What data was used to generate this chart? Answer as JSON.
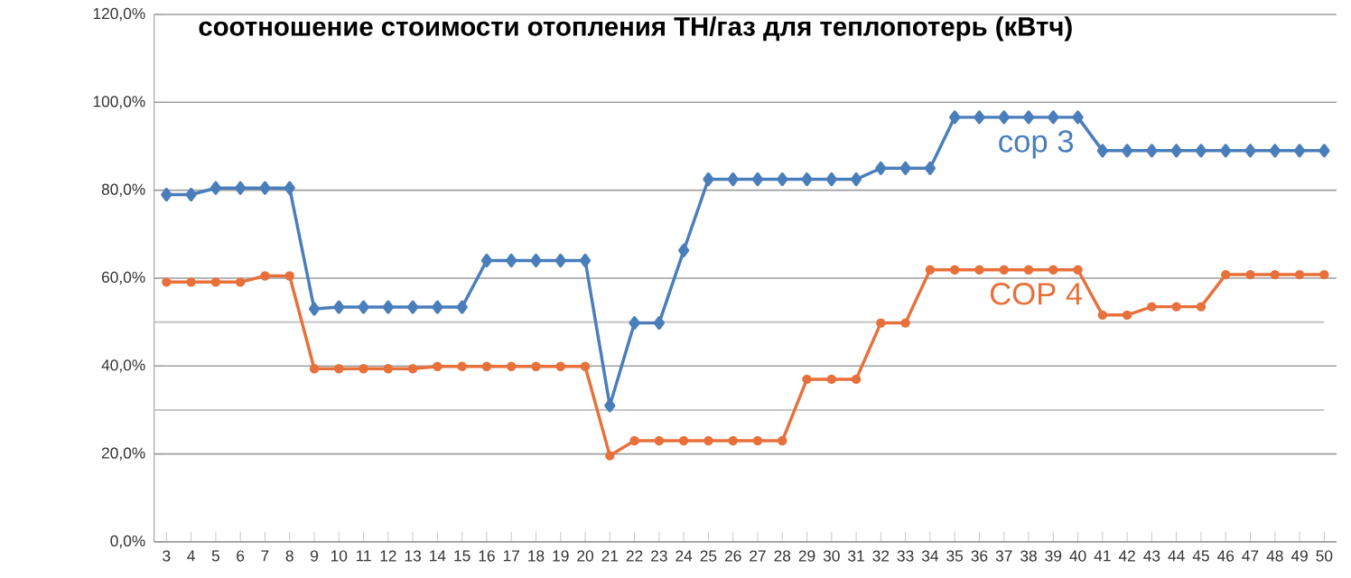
{
  "chart_data": {
    "type": "line",
    "title": "**соотношение стоимости отопления ТН/газ для теплопотерь (кВтч)**",
    "categories": [
      "3",
      "4",
      "5",
      "6",
      "7",
      "8",
      "9",
      "10",
      "11",
      "12",
      "13",
      "14",
      "15",
      "16",
      "17",
      "18",
      "19",
      "20",
      "21",
      "22",
      "23",
      "24",
      "25",
      "26",
      "27",
      "28",
      "29",
      "30",
      "31",
      "32",
      "33",
      "34",
      "35",
      "36",
      "37",
      "38",
      "39",
      "40",
      "41",
      "42",
      "43",
      "44",
      "45",
      "46",
      "47",
      "48",
      "49",
      "50"
    ],
    "series": [
      {
        "name": "cop 3",
        "color": "#4a7ebb",
        "marker": "diamond",
        "values": [
          79,
          79,
          80.5,
          80.5,
          80.5,
          80.5,
          53,
          53.4,
          53.4,
          53.4,
          53.4,
          53.4,
          53.4,
          64,
          64,
          64,
          64,
          64,
          31,
          49.8,
          49.8,
          66.3,
          82.5,
          82.5,
          82.5,
          82.5,
          82.5,
          82.5,
          82.5,
          85,
          85,
          85,
          96.6,
          96.6,
          96.6,
          96.6,
          96.6,
          96.6,
          89,
          89,
          89,
          89,
          89,
          89,
          89,
          89,
          89,
          89
        ]
      },
      {
        "name": "COP 4",
        "color": "#e8703a",
        "marker": "circle",
        "values": [
          59.1,
          59.1,
          59.1,
          59.1,
          60.5,
          60.5,
          39.4,
          39.4,
          39.4,
          39.4,
          39.4,
          39.9,
          39.9,
          39.9,
          39.9,
          39.9,
          39.9,
          39.9,
          19.6,
          23,
          23,
          23,
          23,
          23,
          23,
          23,
          37,
          37,
          37,
          49.8,
          49.8,
          61.9,
          61.9,
          61.9,
          61.9,
          61.9,
          61.9,
          61.9,
          51.6,
          51.6,
          53.5,
          53.5,
          53.5,
          60.8,
          60.8,
          60.8,
          60.8,
          60.8
        ]
      }
    ],
    "ylim": [
      0,
      120
    ],
    "yticks": [
      {
        "value": 0,
        "label": "0,0%"
      },
      {
        "value": 20,
        "label": "20,0%"
      },
      {
        "value": 40,
        "label": "40,0%"
      },
      {
        "value": 60,
        "label": "60,0%"
      },
      {
        "value": 80,
        "label": "80,0%"
      },
      {
        "value": 100,
        "label": "100,0%"
      },
      {
        "value": 120,
        "label": "120,0%"
      }
    ],
    "grid": "y",
    "ref_lines": [
      {
        "axis": "y",
        "value": 30,
        "color": "#c8c8c8"
      },
      {
        "axis": "y",
        "value": 50,
        "color": "#c8c8c8"
      }
    ]
  }
}
